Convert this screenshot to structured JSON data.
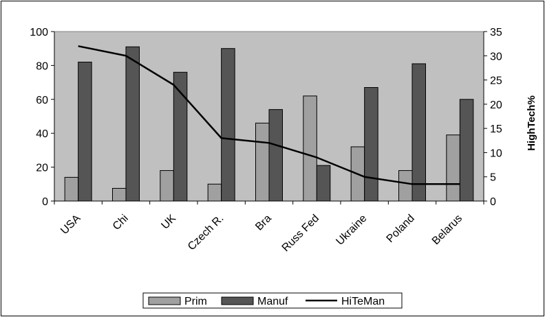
{
  "chart_data": {
    "type": "bar",
    "categories": [
      "USA",
      "Chi",
      "UK",
      "Czech R.",
      "Bra",
      "Russ Fed",
      "Ukraine",
      "Poland",
      "Belarus"
    ],
    "series": [
      {
        "name": "Prim",
        "type": "bar",
        "axis": "left",
        "color": "#a0a0a0",
        "values": [
          14,
          7.5,
          18,
          10,
          46,
          62,
          32,
          18,
          39
        ]
      },
      {
        "name": "Manuf",
        "type": "bar",
        "axis": "left",
        "color": "#555555",
        "values": [
          82,
          91,
          76,
          90,
          54,
          21,
          67,
          81,
          60
        ]
      },
      {
        "name": "HiTeMan",
        "type": "line",
        "axis": "right",
        "color": "#000000",
        "values": [
          32,
          30,
          24,
          13,
          12,
          9,
          5,
          3.5,
          3.5
        ]
      }
    ],
    "ylabel_right": "HighTech%",
    "ylim": [
      0,
      100
    ],
    "ylim_right": [
      0,
      35
    ],
    "yticks": [
      0,
      20,
      40,
      60,
      80,
      100
    ],
    "yticks_right": [
      0,
      5,
      10,
      15,
      20,
      25,
      30,
      35
    ],
    "grid": false,
    "legend": "bottom",
    "plot_background": "#c0c0c0"
  }
}
